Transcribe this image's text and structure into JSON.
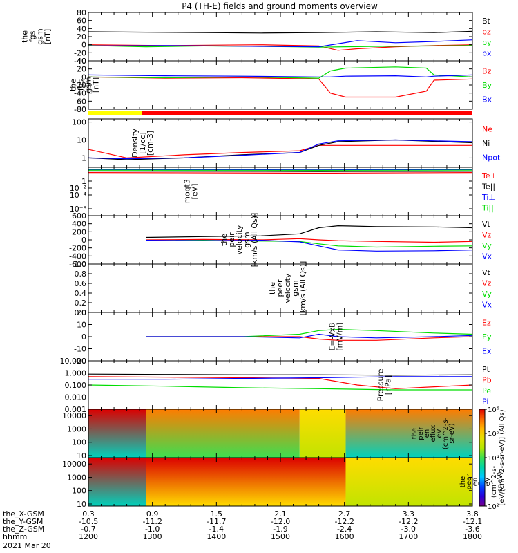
{
  "title": "P4 (TH-E) fields and ground moments overview",
  "chart_data": [
    {
      "type": "line",
      "ylabel": [
        "the",
        "fgs",
        "gsm",
        "[nT]"
      ],
      "ylim": [
        -40,
        80
      ],
      "yticks": [
        -40,
        -20,
        0,
        20,
        40,
        60,
        80
      ],
      "series": [
        {
          "name": "Bt",
          "color": "#000000",
          "segments": [
            {
              "x": [
                0,
                15,
                30,
                45,
                60,
                75,
                90,
                100
              ],
              "y": [
                32,
                31,
                30,
                29,
                30,
                32,
                30,
                33
              ]
            }
          ]
        },
        {
          "name": "bz",
          "color": "#ff0000",
          "segments": [
            {
              "x": [
                0,
                20,
                45,
                60,
                65,
                70,
                80,
                90,
                100
              ],
              "y": [
                0,
                -2,
                0,
                -3,
                -14,
                -10,
                -5,
                -2,
                0
              ]
            }
          ]
        },
        {
          "name": "by",
          "color": "#00dd00",
          "segments": [
            {
              "x": [
                0,
                15,
                30,
                45,
                60,
                75,
                90,
                100
              ],
              "y": [
                -2,
                -5,
                -3,
                -4,
                -6,
                -4,
                -3,
                -2
              ]
            }
          ]
        },
        {
          "name": "bx",
          "color": "#0000ff",
          "segments": [
            {
              "x": [
                0,
                20,
                45,
                60,
                70,
                80,
                90,
                100
              ],
              "y": [
                -3,
                -2,
                -4,
                -5,
                10,
                5,
                8,
                12
              ]
            }
          ]
        }
      ],
      "legend": [
        "Bt",
        "bz",
        "by",
        "bx"
      ]
    },
    {
      "type": "line",
      "ylabel": [
        "the",
        "fgs",
        "gsm",
        "[nT]"
      ],
      "ylim": [
        -80,
        40
      ],
      "yticks": [
        -80,
        -60,
        -40,
        -20,
        0,
        20,
        40
      ],
      "series": [
        {
          "name": "Bz",
          "color": "#ff0000",
          "segments": [
            {
              "x": [
                0,
                20,
                40,
                60,
                63,
                67,
                80,
                88,
                90,
                100
              ],
              "y": [
                0,
                -3,
                -2,
                -5,
                -40,
                -50,
                -50,
                -35,
                -8,
                -5
              ]
            }
          ]
        },
        {
          "name": "By",
          "color": "#00dd00",
          "segments": [
            {
              "x": [
                0,
                20,
                40,
                60,
                63,
                67,
                80,
                88,
                90,
                100
              ],
              "y": [
                0,
                -2,
                0,
                -3,
                15,
                22,
                25,
                22,
                5,
                0
              ]
            }
          ]
        },
        {
          "name": "Bx",
          "color": "#0000ff",
          "segments": [
            {
              "x": [
                0,
                20,
                40,
                60,
                63,
                67,
                80,
                88,
                90,
                100
              ],
              "y": [
                5,
                3,
                2,
                0,
                0,
                2,
                3,
                0,
                2,
                5
              ]
            }
          ]
        }
      ],
      "legend": [
        "Bz",
        "By",
        "Bx"
      ]
    },
    {
      "type": "line",
      "ylabel": [
        "Density",
        "[1/cc]",
        "[cm-3]"
      ],
      "yscale": "log",
      "ylim": [
        0.3,
        150
      ],
      "yticks": [
        1,
        10,
        100
      ],
      "yticklabels": [
        "1",
        "10",
        "100"
      ],
      "series": [
        {
          "name": "Ne",
          "color": "#ff0000",
          "segments": [
            {
              "x": [
                0,
                10,
                25,
                40,
                55,
                60,
                65,
                80,
                100
              ],
              "y": [
                3,
                1,
                1.5,
                2,
                2.5,
                5,
                5,
                5,
                5
              ]
            }
          ]
        },
        {
          "name": "Ni",
          "color": "#000000",
          "segments": [
            {
              "x": [
                0,
                10,
                25,
                40,
                55,
                60,
                65,
                80,
                100
              ],
              "y": [
                1,
                0.8,
                1,
                1.5,
                2,
                5,
                8,
                10,
                7
              ]
            }
          ]
        },
        {
          "name": "Npot",
          "color": "#0000ff",
          "segments": [
            {
              "x": [
                0,
                10,
                25,
                40,
                55,
                60,
                65,
                80,
                100
              ],
              "y": [
                1,
                0.9,
                1,
                1.4,
                2,
                6,
                9,
                10,
                8
              ]
            }
          ]
        }
      ],
      "legend": [
        "Ne",
        "Ni",
        "Npot"
      ]
    },
    {
      "type": "line",
      "ylabel": [
        "moqt3",
        "[eV]"
      ],
      "yscale": "log",
      "ylim": [
        1e-10,
        10000
      ],
      "yticks": [
        0.0001,
        0.01,
        1,
        1e-08
      ],
      "yticklabels": [
        "10⁻⁴",
        "10⁻²",
        "1",
        "10⁻⁸"
      ],
      "series": [
        {
          "name": "Te⊥",
          "color": "#ff0000",
          "segments": [
            {
              "x": [
                0,
                60,
                100
              ],
              "y": [
                300,
                200,
                300
              ]
            }
          ]
        },
        {
          "name": "Te||",
          "color": "#000000",
          "segments": [
            {
              "x": [
                0,
                60,
                100
              ],
              "y": [
                800,
                600,
                700
              ]
            }
          ]
        },
        {
          "name": "Ti⊥",
          "color": "#0000ff",
          "segments": [
            {
              "x": [
                0,
                60,
                100
              ],
              "y": [
                2000,
                1800,
                2000
              ]
            }
          ]
        },
        {
          "name": "Ti||",
          "color": "#00dd00",
          "segments": [
            {
              "x": [
                0,
                60,
                100
              ],
              "y": [
                1500,
                1300,
                1500
              ]
            }
          ]
        }
      ],
      "legend": [
        "Te⊥",
        "Te||",
        "Ti⊥",
        "Ti||"
      ]
    },
    {
      "type": "line",
      "ylabel": [
        "the",
        "peir",
        "velocity",
        "gsm",
        "[km/s (All Qs)]"
      ],
      "ylim": [
        -600,
        600
      ],
      "yticks": [
        -600,
        -400,
        -200,
        0,
        200,
        400,
        600
      ],
      "series": [
        {
          "name": "Vt",
          "color": "#000000",
          "segments": [
            {
              "x": [
                15,
                30,
                45,
                55,
                60,
                65,
                75,
                90,
                100
              ],
              "y": [
                60,
                80,
                100,
                150,
                300,
                350,
                330,
                320,
                300
              ]
            }
          ]
        },
        {
          "name": "Vz",
          "color": "#ff0000",
          "segments": [
            {
              "x": [
                15,
                30,
                45,
                55,
                60,
                65,
                75,
                90,
                100
              ],
              "y": [
                0,
                10,
                0,
                30,
                0,
                -20,
                -40,
                -60,
                -40
              ]
            }
          ]
        },
        {
          "name": "Vy",
          "color": "#00dd00",
          "segments": [
            {
              "x": [
                15,
                30,
                45,
                55,
                60,
                65,
                75,
                90,
                100
              ],
              "y": [
                -20,
                -10,
                -30,
                -40,
                -100,
                -150,
                -180,
                -160,
                -150
              ]
            }
          ]
        },
        {
          "name": "Vx",
          "color": "#0000ff",
          "segments": [
            {
              "x": [
                15,
                30,
                45,
                55,
                60,
                65,
                75,
                90,
                100
              ],
              "y": [
                -10,
                -20,
                -10,
                -50,
                -150,
                -250,
                -280,
                -270,
                -250
              ]
            }
          ]
        }
      ],
      "legend": [
        "Vt",
        "Vz",
        "Vy",
        "Vx"
      ]
    },
    {
      "type": "line",
      "ylabel": [
        "the",
        "peer",
        "velocity",
        "gsm",
        "[km/s (All Qs)]"
      ],
      "ylim": [
        0,
        1
      ],
      "yticks": [
        0,
        0.2,
        0.4,
        0.6,
        0.8,
        1.0
      ],
      "yticklabels": [
        "0.0",
        "0.2",
        "0.4",
        "0.6",
        "0.8",
        "1.0"
      ],
      "series": [],
      "legend": [
        "Vt",
        "Vz",
        "Vy",
        "Vx"
      ],
      "legend_colors": [
        "#000000",
        "#ff0000",
        "#00dd00",
        "#0000ff"
      ]
    },
    {
      "type": "line",
      "ylabel": [
        "E=-VxB",
        "[mV/m]"
      ],
      "ylim": [
        -20,
        20
      ],
      "yticks": [
        -20,
        -10,
        0,
        10,
        20
      ],
      "series": [
        {
          "name": "Ez",
          "color": "#ff0000",
          "segments": [
            {
              "x": [
                15,
                40,
                55,
                60,
                65,
                75,
                90,
                100
              ],
              "y": [
                0,
                0,
                0,
                -2,
                -3,
                -3,
                -1,
                0
              ]
            }
          ]
        },
        {
          "name": "Ey",
          "color": "#00dd00",
          "segments": [
            {
              "x": [
                15,
                40,
                55,
                60,
                65,
                75,
                90,
                100
              ],
              "y": [
                0,
                0,
                2,
                5,
                6,
                5,
                3,
                2
              ]
            }
          ]
        },
        {
          "name": "Ex",
          "color": "#0000ff",
          "segments": [
            {
              "x": [
                15,
                40,
                55,
                60,
                65,
                75,
                90,
                100
              ],
              "y": [
                0,
                0,
                -1,
                2,
                0,
                -1,
                0,
                1
              ]
            }
          ]
        }
      ],
      "legend": [
        "Ez",
        "Ey",
        "Ex"
      ]
    },
    {
      "type": "line",
      "ylabel": [
        "Pressure",
        "[nPa]"
      ],
      "yscale": "log",
      "ylim": [
        0.001,
        10
      ],
      "yticks": [
        0.001,
        0.01,
        0.1,
        1,
        10
      ],
      "yticklabels": [
        "0.001",
        "0.010",
        "0.100",
        "1.000",
        "10.000"
      ],
      "series": [
        {
          "name": "Pt",
          "color": "#000000",
          "segments": [
            {
              "x": [
                0,
                20,
                40,
                60,
                80,
                100
              ],
              "y": [
                0.8,
                0.75,
                0.7,
                0.7,
                0.65,
                0.7
              ]
            }
          ]
        },
        {
          "name": "Pb",
          "color": "#ff0000",
          "segments": [
            {
              "x": [
                0,
                20,
                40,
                60,
                70,
                80,
                100
              ],
              "y": [
                0.5,
                0.45,
                0.4,
                0.35,
                0.1,
                0.05,
                0.1
              ]
            }
          ]
        },
        {
          "name": "Pe",
          "color": "#00dd00",
          "segments": [
            {
              "x": [
                0,
                20,
                40,
                60,
                80,
                100
              ],
              "y": [
                0.1,
                0.08,
                0.06,
                0.05,
                0.04,
                0.04
              ]
            }
          ]
        },
        {
          "name": "Pi",
          "color": "#0000ff",
          "segments": [
            {
              "x": [
                0,
                20,
                40,
                60,
                80,
                100
              ],
              "y": [
                0.3,
                0.3,
                0.35,
                0.4,
                0.5,
                0.5
              ]
            }
          ]
        }
      ],
      "legend": [
        "Pt",
        "Pb",
        "Pe",
        "Pi"
      ]
    },
    {
      "type": "heatmap",
      "ylabel": [
        "the",
        "peir",
        "en",
        "eflux",
        "eV",
        "(cm^2-s-",
        "sr-eV)"
      ],
      "yscale": "log",
      "ylim": [
        7,
        30000
      ],
      "yticks": [
        10,
        100,
        1000,
        10000
      ],
      "yticklabels": [
        "10",
        "100",
        "1000",
        "10000"
      ],
      "zlim": [
        100,
        1000000
      ],
      "columns": [
        {
          "x": [
            0,
            15
          ],
          "top_log10": 6.0,
          "bottom_log10": 3.5
        },
        {
          "x": [
            15,
            55
          ],
          "top_log10": 5.5,
          "bottom_log10": 4.0
        },
        {
          "x": [
            55,
            67
          ],
          "top_log10": 5.0,
          "bottom_log10": 4.5
        },
        {
          "x": [
            67,
            100
          ],
          "top_log10": 5.5,
          "bottom_log10": 3.5
        }
      ]
    },
    {
      "type": "heatmap",
      "ylabel": [
        "the",
        "peer",
        "en",
        "eflux",
        "eV",
        "(cm^2-s-",
        "sr-eV)"
      ],
      "yscale": "log",
      "ylim": [
        7,
        30000
      ],
      "yticks": [
        10,
        100,
        1000,
        10000
      ],
      "yticklabels": [
        "10",
        "100",
        "1000",
        "10000"
      ],
      "zlim": [
        100,
        1000000
      ],
      "columns": [
        {
          "x": [
            0,
            15
          ],
          "top_log10": 6.0,
          "bottom_log10": 3.5
        },
        {
          "x": [
            15,
            67
          ],
          "top_log10": 6.0,
          "bottom_log10": 5.0
        },
        {
          "x": [
            67,
            100
          ],
          "top_log10": 5.0,
          "bottom_log10": 4.5
        }
      ]
    }
  ],
  "flag_bar": [
    {
      "x": [
        0,
        14
      ],
      "color": "#ffff00"
    },
    {
      "x": [
        14,
        100
      ],
      "color": "#ff0000"
    }
  ],
  "colorbar": {
    "label": "[eV/(cm^2-s-sr-eV)] (All Qs)",
    "ticks": [
      {
        "value": 100,
        "label": "10²"
      },
      {
        "value": 10000,
        "label": "10⁴"
      },
      {
        "value": 100000,
        "label": "10⁵"
      },
      {
        "value": 1000000,
        "label": "10⁶"
      }
    ]
  },
  "xaxis": {
    "x": [
      0,
      16.67,
      33.33,
      50,
      66.67,
      83.33,
      100
    ],
    "rows": [
      {
        "name": "the_X-GSM",
        "labels": [
          "0.3",
          "0.9",
          "1.5",
          "2.1",
          "2.7",
          "3.3",
          "3.8"
        ]
      },
      {
        "name": "the_Y-GSM",
        "labels": [
          "-10.5",
          "-11.2",
          "-11.7",
          "-12.0",
          "-12.2",
          "-12.2",
          "-12.1"
        ]
      },
      {
        "name": "the_Z-GSM",
        "labels": [
          "-0.7",
          "-1.0",
          "-1.4",
          "-1.9",
          "-2.4",
          "-3.0",
          "-3.6"
        ]
      },
      {
        "name": "hhmm",
        "labels": [
          "1200",
          "1300",
          "1400",
          "1500",
          "1600",
          "1700",
          "1800"
        ]
      }
    ],
    "date": "2021 Mar 20"
  }
}
